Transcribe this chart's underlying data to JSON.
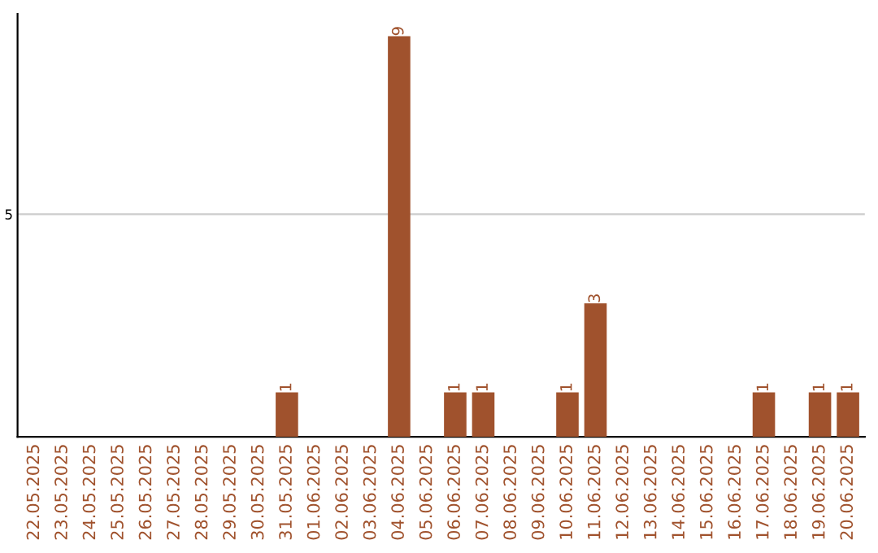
{
  "chart_data": {
    "type": "bar",
    "categories": [
      "22.05.2025",
      "23.05.2025",
      "24.05.2025",
      "25.05.2025",
      "26.05.2025",
      "27.05.2025",
      "28.05.2025",
      "29.05.2025",
      "30.05.2025",
      "31.05.2025",
      "01.06.2025",
      "02.06.2025",
      "03.06.2025",
      "04.06.2025",
      "05.06.2025",
      "06.06.2025",
      "07.06.2025",
      "08.06.2025",
      "09.06.2025",
      "10.06.2025",
      "11.06.2025",
      "12.06.2025",
      "13.06.2025",
      "14.06.2025",
      "15.06.2025",
      "16.06.2025",
      "17.06.2025",
      "18.06.2025",
      "19.06.2025",
      "20.06.2025"
    ],
    "values": [
      0,
      0,
      0,
      0,
      0,
      0,
      0,
      0,
      0,
      1,
      0,
      0,
      0,
      9,
      0,
      1,
      1,
      0,
      0,
      1,
      3,
      0,
      0,
      0,
      0,
      0,
      1,
      0,
      1,
      1
    ],
    "color": "#a0522d",
    "value_labels": [
      null,
      null,
      null,
      null,
      null,
      null,
      null,
      null,
      null,
      "1",
      null,
      null,
      null,
      "9",
      null,
      "1",
      "1",
      null,
      null,
      "1",
      "3",
      null,
      null,
      null,
      null,
      null,
      "1",
      null,
      "1",
      "1"
    ],
    "ylim": [
      0,
      9.5
    ],
    "yticks": [
      5
    ],
    "grid": "y"
  }
}
